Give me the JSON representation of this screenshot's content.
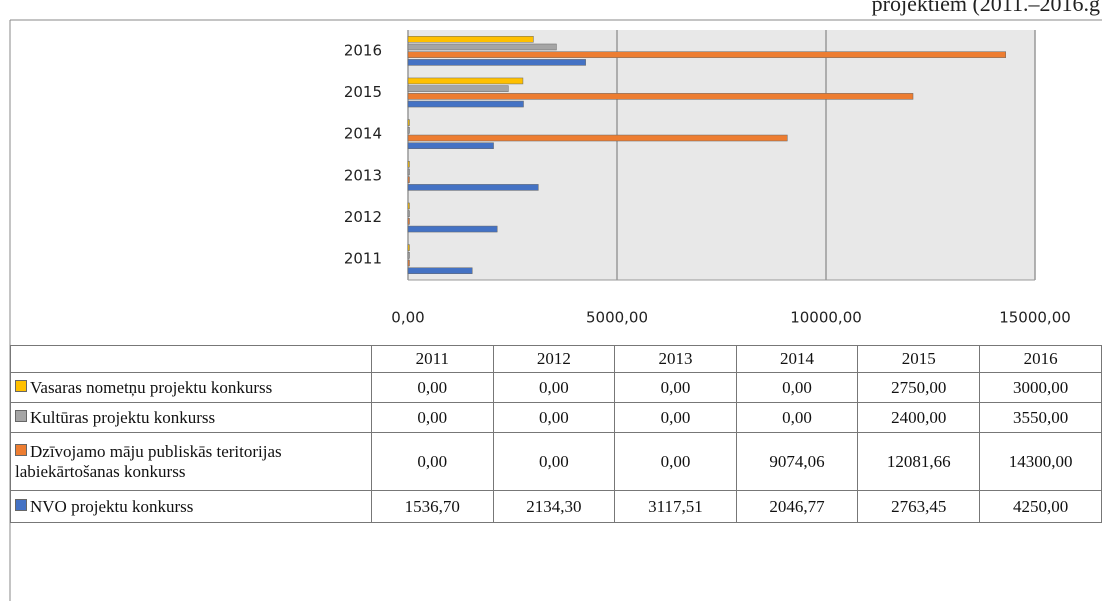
{
  "chart_data": {
    "type": "bar",
    "orientation": "horizontal",
    "title": "projektiem (2011.–2016.g",
    "categories": [
      "2011",
      "2012",
      "2013",
      "2014",
      "2015",
      "2016"
    ],
    "series": [
      {
        "name": "Vasaras nometņu projektu konkurss",
        "color": "#ffc000",
        "values": [
          0,
          0,
          0,
          0,
          2750,
          3000
        ],
        "value_labels": [
          "0,00",
          "0,00",
          "0,00",
          "0,00",
          "2750,00",
          "3000,00"
        ]
      },
      {
        "name": "Kultūras projektu konkurss",
        "color": "#a5a5a5",
        "values": [
          0,
          0,
          0,
          0,
          2400,
          3550
        ],
        "value_labels": [
          "0,00",
          "0,00",
          "0,00",
          "0,00",
          "2400,00",
          "3550,00"
        ]
      },
      {
        "name": "Dzīvojamo māju publiskās teritorijas labiekārtošanas konkurss",
        "color": "#ed7d31",
        "values": [
          0,
          0,
          0,
          9074.06,
          12081.66,
          14300
        ],
        "value_labels": [
          "0,00",
          "0,00",
          "0,00",
          "9074,06",
          "12081,66",
          "14300,00"
        ]
      },
      {
        "name": "NVO projektu konkurss",
        "color": "#4472c4",
        "values": [
          1536.7,
          2134.3,
          3117.51,
          2046.77,
          2763.45,
          4250
        ],
        "value_labels": [
          "1536,70",
          "2134,30",
          "3117,51",
          "2046,77",
          "2763,45",
          "4250,00"
        ]
      }
    ],
    "xlim": [
      0,
      15000
    ],
    "xticks": [
      {
        "value": 0,
        "label": "0,00"
      },
      {
        "value": 5000,
        "label": "5000,00"
      },
      {
        "value": 10000,
        "label": "10000,00"
      },
      {
        "value": 15000,
        "label": "15000,00"
      }
    ],
    "grid": true
  }
}
